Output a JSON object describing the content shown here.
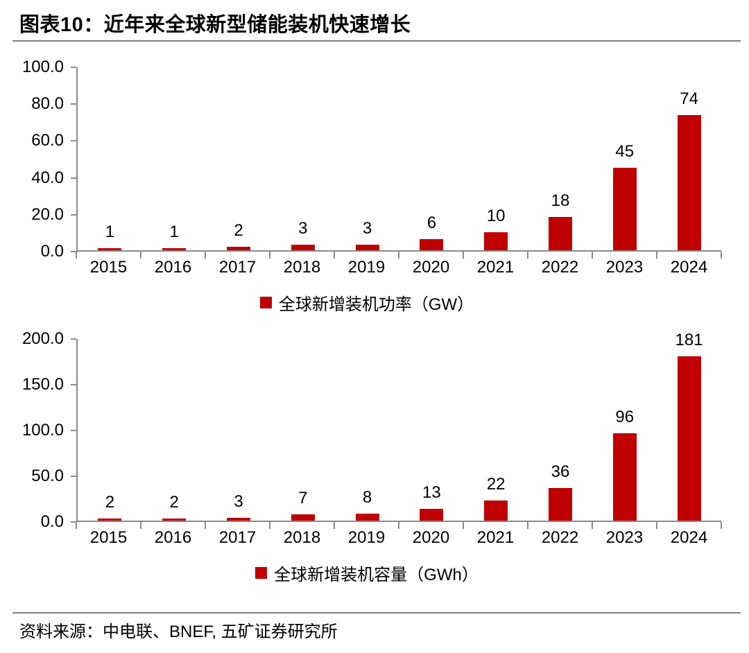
{
  "header": {
    "title": "图表10：近年来全球新型储能装机快速增长"
  },
  "colors": {
    "bar": "#C00000",
    "axis": "#8A8A8A",
    "rule": "#7F7F7F"
  },
  "chart_data": [
    {
      "type": "bar",
      "title": "",
      "categories": [
        "2015",
        "2016",
        "2017",
        "2018",
        "2019",
        "2020",
        "2021",
        "2022",
        "2023",
        "2024"
      ],
      "values": [
        1,
        1,
        2,
        3,
        3,
        6,
        10,
        18,
        45,
        74
      ],
      "legend": "全球新增装机功率（GW）",
      "legend_swatch": "red-square",
      "legend_position": "bottom",
      "xlabel": "",
      "ylabel": "",
      "ylim": [
        0,
        100
      ],
      "yticks": [
        "100.0",
        "80.0",
        "60.0",
        "40.0",
        "20.0",
        "0.0"
      ],
      "grid": false,
      "bar_color": "#C00000"
    },
    {
      "type": "bar",
      "title": "",
      "categories": [
        "2015",
        "2016",
        "2017",
        "2018",
        "2019",
        "2020",
        "2021",
        "2022",
        "2023",
        "2024"
      ],
      "values": [
        2,
        2,
        3,
        7,
        8,
        13,
        22,
        36,
        96,
        181
      ],
      "legend": "全球新增装机容量（GWh）",
      "legend_swatch": "red-square",
      "legend_position": "bottom",
      "xlabel": "",
      "ylabel": "",
      "ylim": [
        0,
        200
      ],
      "yticks": [
        "200.0",
        "150.0",
        "100.0",
        "50.0",
        "0.0"
      ],
      "grid": false,
      "bar_color": "#C00000"
    }
  ],
  "footer": {
    "source": "资料来源：中电联、BNEF, 五矿证券研究所"
  }
}
